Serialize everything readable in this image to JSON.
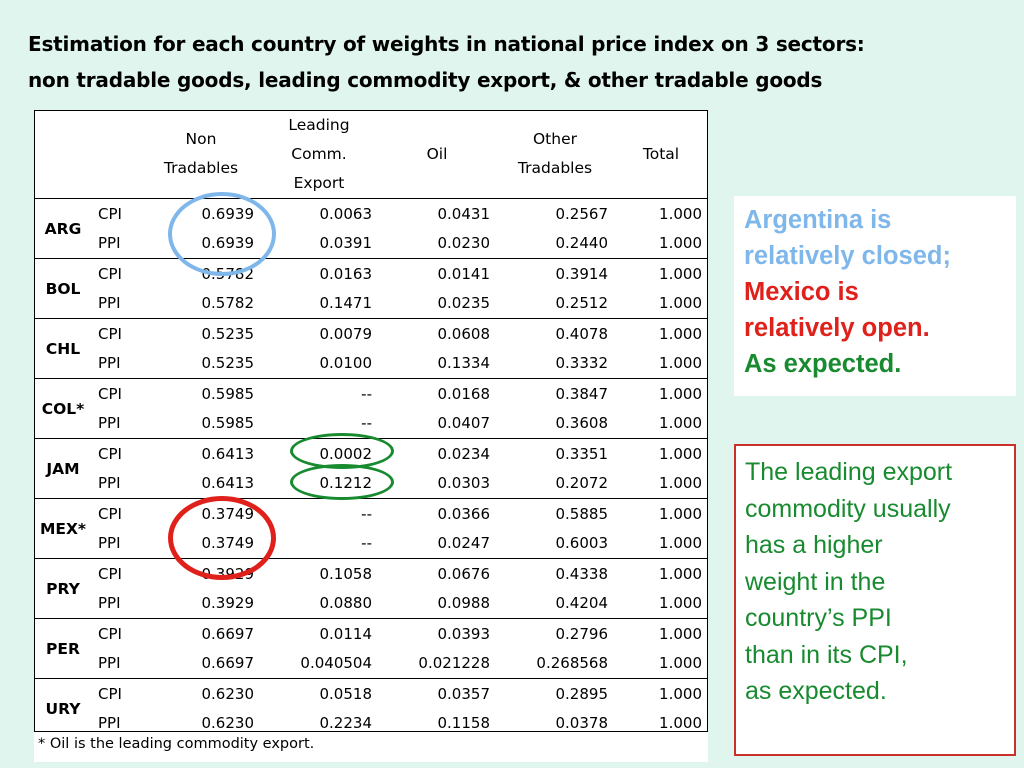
{
  "title": {
    "line1": "Estimation for each country of weights in national price index on 3 sectors:",
    "line2": "non tradable goods, leading commodity export, & other tradable goods"
  },
  "table": {
    "headers": {
      "non_tradables": [
        "Non",
        "Tradables"
      ],
      "leading": [
        "Leading",
        "Comm.",
        "Export"
      ],
      "oil": "Oil",
      "other": [
        "Other",
        "Tradables"
      ],
      "total": "Total"
    },
    "rows": [
      {
        "country": "ARG",
        "cpi": [
          "0.6939",
          "0.0063",
          "0.0431",
          "0.2567",
          "1.000"
        ],
        "ppi": [
          "0.6939",
          "0.0391",
          "0.0230",
          "0.2440",
          "1.000"
        ]
      },
      {
        "country": "BOL",
        "cpi": [
          "0.5782",
          "0.0163",
          "0.0141",
          "0.3914",
          "1.000"
        ],
        "ppi": [
          "0.5782",
          "0.1471",
          "0.0235",
          "0.2512",
          "1.000"
        ]
      },
      {
        "country": "CHL",
        "cpi": [
          "0.5235",
          "0.0079",
          "0.0608",
          "0.4078",
          "1.000"
        ],
        "ppi": [
          "0.5235",
          "0.0100",
          "0.1334",
          "0.3332",
          "1.000"
        ]
      },
      {
        "country": "COL*",
        "cpi": [
          "0.5985",
          "--",
          "0.0168",
          "0.3847",
          "1.000"
        ],
        "ppi": [
          "0.5985",
          "--",
          "0.0407",
          "0.3608",
          "1.000"
        ]
      },
      {
        "country": "JAM",
        "cpi": [
          "0.6413",
          "0.0002",
          "0.0234",
          "0.3351",
          "1.000"
        ],
        "ppi": [
          "0.6413",
          "0.1212",
          "0.0303",
          "0.2072",
          "1.000"
        ]
      },
      {
        "country": "MEX*",
        "cpi": [
          "0.3749",
          "--",
          "0.0366",
          "0.5885",
          "1.000"
        ],
        "ppi": [
          "0.3749",
          "--",
          "0.0247",
          "0.6003",
          "1.000"
        ]
      },
      {
        "country": "PRY",
        "cpi": [
          "0.3929",
          "0.1058",
          "0.0676",
          "0.4338",
          "1.000"
        ],
        "ppi": [
          "0.3929",
          "0.0880",
          "0.0988",
          "0.4204",
          "1.000"
        ]
      },
      {
        "country": "PER",
        "cpi": [
          "0.6697",
          "0.0114",
          "0.0393",
          "0.2796",
          "1.000"
        ],
        "ppi": [
          "0.6697",
          "0.040504",
          "0.021228",
          "0.268568",
          "1.000"
        ]
      },
      {
        "country": "URY",
        "cpi": [
          "0.6230",
          "0.0518",
          "0.0357",
          "0.2895",
          "1.000"
        ],
        "ppi": [
          "0.6230",
          "0.2234",
          "0.1158",
          "0.0378",
          "1.000"
        ]
      }
    ],
    "cpi_label": "CPI",
    "ppi_label": "PPI",
    "footnote": "* Oil is the leading commodity export."
  },
  "note1": {
    "line1": "Argentina is",
    "line2": "relatively closed;",
    "line3": "Mexico is",
    "line4": "relatively open.",
    "line5": "As expected."
  },
  "note2": {
    "lines": [
      "The leading export",
      "commodity usually",
      "has a higher",
      "weight in the",
      "country’s PPI",
      "than in its CPI,",
      "as expected."
    ]
  },
  "colors": {
    "background": "#dff5ee",
    "blue_ring": "#7fb7ea",
    "red_ring": "#e0201b",
    "green_ring": "#188a2f",
    "note_border": "#c9302c"
  }
}
